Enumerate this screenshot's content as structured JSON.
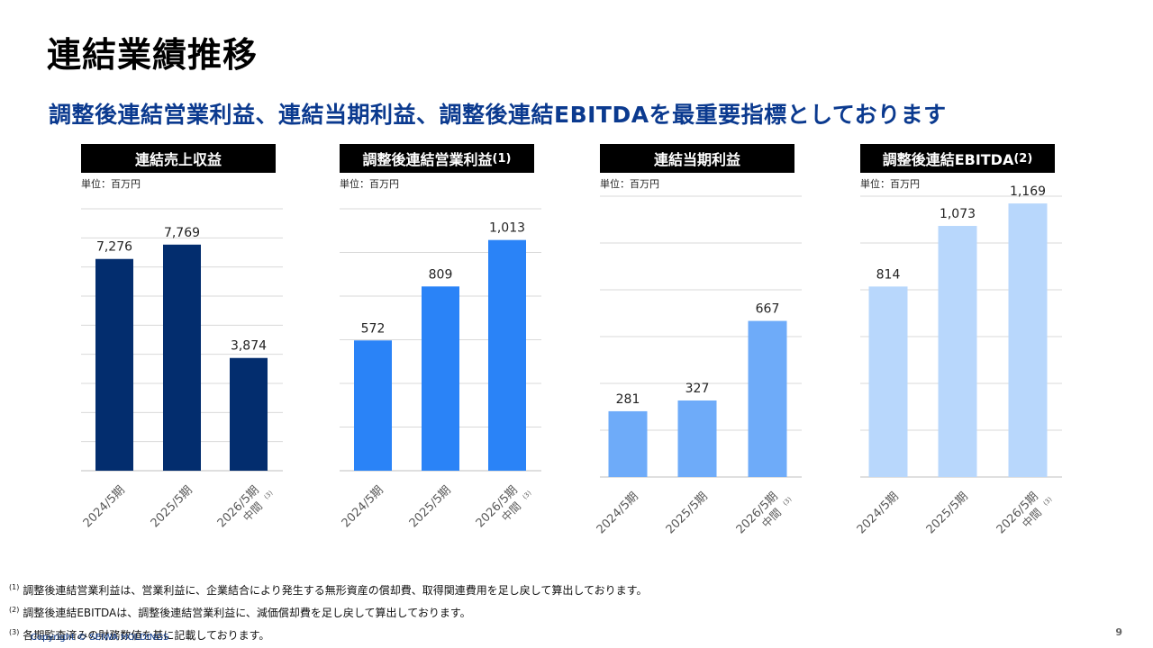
{
  "title": "連結業績推移",
  "subtitle": "調整後連結営業利益、連結当期利益、調整後連結EBITDAを最重要指標としております",
  "unit_label": "単位：百万円",
  "chart_data": [
    {
      "type": "bar",
      "title": "連結売上収益",
      "title_suffix": "",
      "categories": [
        "2024/5期",
        "2025/5期",
        "2026/5期"
      ],
      "category_sub": [
        "",
        "",
        "中間"
      ],
      "category_sub_note": [
        "",
        "",
        "(3)"
      ],
      "values": [
        7276,
        7769,
        3874
      ],
      "value_labels": [
        "7,276",
        "7,769",
        "3,874"
      ],
      "color": "#032d6e",
      "ylim": [
        0,
        9000
      ]
    },
    {
      "type": "bar",
      "title": "調整後連結営業利益",
      "title_suffix": "(1)",
      "categories": [
        "2024/5期",
        "2025/5期",
        "2026/5期"
      ],
      "category_sub": [
        "",
        "",
        "中間"
      ],
      "category_sub_note": [
        "",
        "",
        "(3)"
      ],
      "values": [
        572,
        809,
        1013
      ],
      "value_labels": [
        "572",
        "809",
        "1,013"
      ],
      "color": "#2a83f7",
      "ylim": [
        0,
        1150
      ]
    },
    {
      "type": "bar",
      "title": "連結当期利益",
      "title_suffix": "",
      "categories": [
        "2024/5期",
        "2025/5期",
        "2026/5期"
      ],
      "category_sub": [
        "",
        "",
        "中間"
      ],
      "category_sub_note": [
        "",
        "",
        "(3)"
      ],
      "values": [
        281,
        327,
        667
      ],
      "value_labels": [
        "281",
        "327",
        "667"
      ],
      "color": "#6eabf9",
      "ylim": [
        0,
        1200
      ]
    },
    {
      "type": "bar",
      "title": "調整後連結EBITDA",
      "title_suffix": "(2)",
      "categories": [
        "2024/5期",
        "2025/5期",
        "2026/5期"
      ],
      "category_sub": [
        "",
        "",
        "中間"
      ],
      "category_sub_note": [
        "",
        "",
        "(3)"
      ],
      "values": [
        814,
        1073,
        1169
      ],
      "value_labels": [
        "814",
        "1,073",
        "1,169"
      ],
      "color": "#b8d7fc",
      "ylim": [
        0,
        1200
      ]
    }
  ],
  "footnotes": [
    {
      "mark": "(1)",
      "text": "調整後連結営業利益は、営業利益に、企業結合により発生する無形資産の償却費、取得関連費用を足し戻して算出しております。"
    },
    {
      "mark": "(2)",
      "text": "調整後連結EBITDAは、調整後連結営業利益に、減価償却費を足し戻して算出しております。"
    },
    {
      "mark": "(3)",
      "text": "各期監査済みの財務数値を基に記載しております。"
    }
  ],
  "copyright": "Copyright © SEIWA HOLDINGS",
  "page_number": "9"
}
